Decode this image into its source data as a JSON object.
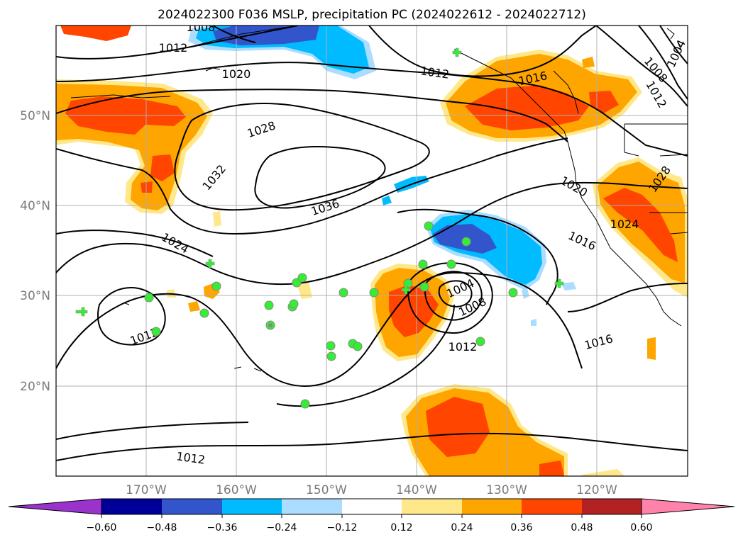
{
  "title": "2024022300 F036 MSLP, precipitation PC (2024022612 - 2024022712)",
  "colors": {
    "neg_060": "#9933cc",
    "neg_048": "#000099",
    "neg_036": "#3355cc",
    "neg_024": "#00bbff",
    "neg_012": "#aaddff",
    "neutral": "#ffffff",
    "pos_012": "#ffe88a",
    "pos_024": "#ffa500",
    "pos_036": "#ff4500",
    "pos_048": "#b22222",
    "pos_060": "#ff82ab",
    "station": "#33ee33",
    "isobar": "#000000"
  },
  "map": {
    "lon_ticks": [
      "170°W",
      "160°W",
      "150°W",
      "140°W",
      "130°W",
      "120°W"
    ],
    "lat_ticks": [
      "50°N",
      "40°N",
      "30°N",
      "20°N"
    ]
  },
  "isobar_labels": [
    {
      "text": "1008"
    },
    {
      "text": "1012"
    },
    {
      "text": "1020"
    },
    {
      "text": "1012"
    },
    {
      "text": "1016"
    },
    {
      "text": "1008"
    },
    {
      "text": "1004"
    },
    {
      "text": "1012"
    },
    {
      "text": "1028"
    },
    {
      "text": "1032"
    },
    {
      "text": "1036"
    },
    {
      "text": "1020"
    },
    {
      "text": "1028"
    },
    {
      "text": "1024"
    },
    {
      "text": "1024"
    },
    {
      "text": "1016"
    },
    {
      "text": "1004"
    },
    {
      "text": "1008"
    },
    {
      "text": "1012"
    },
    {
      "text": "1016"
    },
    {
      "text": "1012"
    },
    {
      "text": "1012"
    }
  ],
  "colorbar": {
    "ticks": [
      "−0.60",
      "−0.48",
      "−0.36",
      "−0.24",
      "−0.12",
      "0.12",
      "0.24",
      "0.36",
      "0.48",
      "0.60"
    ]
  }
}
